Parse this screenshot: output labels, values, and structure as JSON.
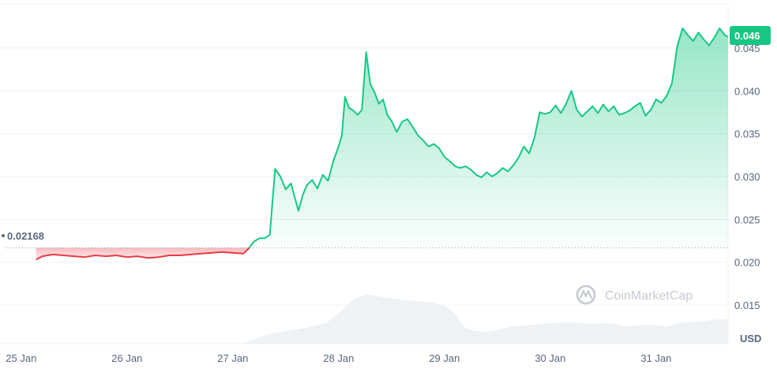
{
  "chart_data": {
    "type": "line",
    "unit": "USD",
    "open_price_label": "0.02168",
    "open_price": 0.02168,
    "current_price_label": "0.046",
    "current_price": 0.046,
    "ylim": [
      0.0105,
      0.0506
    ],
    "yticks": [
      {
        "value": 0.015,
        "label": "0.015"
      },
      {
        "value": 0.02,
        "label": "0.020"
      },
      {
        "value": 0.025,
        "label": "0.025"
      },
      {
        "value": 0.03,
        "label": "0.030"
      },
      {
        "value": 0.035,
        "label": "0.035"
      },
      {
        "value": 0.04,
        "label": "0.040"
      },
      {
        "value": 0.045,
        "label": "0.045"
      }
    ],
    "xticks": [
      {
        "day": 0,
        "label": "25 Jan"
      },
      {
        "day": 1,
        "label": "26 Jan"
      },
      {
        "day": 2,
        "label": "27 Jan"
      },
      {
        "day": 3,
        "label": "28 Jan"
      },
      {
        "day": 4,
        "label": "29 Jan"
      },
      {
        "day": 5,
        "label": "30 Jan"
      },
      {
        "day": 6,
        "label": "31 Jan"
      }
    ],
    "xlim": [
      -0.2,
      6.68
    ],
    "price_series": [
      [
        0.14,
        0.0203
      ],
      [
        0.2,
        0.0207
      ],
      [
        0.3,
        0.0209
      ],
      [
        0.4,
        0.0208
      ],
      [
        0.5,
        0.0207
      ],
      [
        0.6,
        0.0206
      ],
      [
        0.7,
        0.0208
      ],
      [
        0.8,
        0.0207
      ],
      [
        0.9,
        0.0208
      ],
      [
        1.0,
        0.0206
      ],
      [
        1.1,
        0.0207
      ],
      [
        1.2,
        0.0205
      ],
      [
        1.3,
        0.0206
      ],
      [
        1.4,
        0.0208
      ],
      [
        1.5,
        0.0208
      ],
      [
        1.6,
        0.0209
      ],
      [
        1.7,
        0.021
      ],
      [
        1.8,
        0.0211
      ],
      [
        1.9,
        0.0212
      ],
      [
        2.0,
        0.0211
      ],
      [
        2.1,
        0.021
      ],
      [
        2.15,
        0.0216
      ],
      [
        2.2,
        0.0224
      ],
      [
        2.25,
        0.0228
      ],
      [
        2.3,
        0.0228
      ],
      [
        2.35,
        0.0232
      ],
      [
        2.4,
        0.0309
      ],
      [
        2.45,
        0.03
      ],
      [
        2.5,
        0.0285
      ],
      [
        2.55,
        0.0292
      ],
      [
        2.58,
        0.0278
      ],
      [
        2.62,
        0.026
      ],
      [
        2.66,
        0.0278
      ],
      [
        2.7,
        0.029
      ],
      [
        2.75,
        0.0296
      ],
      [
        2.8,
        0.0286
      ],
      [
        2.85,
        0.0302
      ],
      [
        2.9,
        0.0295
      ],
      [
        2.95,
        0.0318
      ],
      [
        3.0,
        0.0335
      ],
      [
        3.03,
        0.0348
      ],
      [
        3.06,
        0.0393
      ],
      [
        3.1,
        0.038
      ],
      [
        3.14,
        0.0377
      ],
      [
        3.18,
        0.0372
      ],
      [
        3.22,
        0.0378
      ],
      [
        3.26,
        0.0445
      ],
      [
        3.3,
        0.0408
      ],
      [
        3.34,
        0.0398
      ],
      [
        3.38,
        0.0385
      ],
      [
        3.42,
        0.039
      ],
      [
        3.46,
        0.0372
      ],
      [
        3.5,
        0.0365
      ],
      [
        3.55,
        0.0352
      ],
      [
        3.6,
        0.0364
      ],
      [
        3.65,
        0.0367
      ],
      [
        3.7,
        0.0358
      ],
      [
        3.75,
        0.0348
      ],
      [
        3.8,
        0.0342
      ],
      [
        3.85,
        0.0335
      ],
      [
        3.9,
        0.0338
      ],
      [
        3.95,
        0.0333
      ],
      [
        4.0,
        0.0323
      ],
      [
        4.05,
        0.0318
      ],
      [
        4.1,
        0.0312
      ],
      [
        4.15,
        0.031
      ],
      [
        4.2,
        0.0312
      ],
      [
        4.25,
        0.0308
      ],
      [
        4.3,
        0.0302
      ],
      [
        4.35,
        0.0299
      ],
      [
        4.4,
        0.0305
      ],
      [
        4.45,
        0.03
      ],
      [
        4.5,
        0.0304
      ],
      [
        4.55,
        0.031
      ],
      [
        4.6,
        0.0306
      ],
      [
        4.65,
        0.0313
      ],
      [
        4.7,
        0.0322
      ],
      [
        4.75,
        0.0335
      ],
      [
        4.8,
        0.0327
      ],
      [
        4.85,
        0.0345
      ],
      [
        4.9,
        0.0375
      ],
      [
        4.95,
        0.0373
      ],
      [
        5.0,
        0.0375
      ],
      [
        5.05,
        0.0383
      ],
      [
        5.1,
        0.0374
      ],
      [
        5.15,
        0.0385
      ],
      [
        5.2,
        0.04
      ],
      [
        5.25,
        0.0378
      ],
      [
        5.3,
        0.037
      ],
      [
        5.35,
        0.0376
      ],
      [
        5.4,
        0.0382
      ],
      [
        5.45,
        0.0374
      ],
      [
        5.5,
        0.0384
      ],
      [
        5.55,
        0.0376
      ],
      [
        5.6,
        0.0382
      ],
      [
        5.65,
        0.0372
      ],
      [
        5.7,
        0.0374
      ],
      [
        5.75,
        0.0377
      ],
      [
        5.8,
        0.0382
      ],
      [
        5.85,
        0.0386
      ],
      [
        5.9,
        0.0371
      ],
      [
        5.95,
        0.0378
      ],
      [
        6.0,
        0.039
      ],
      [
        6.05,
        0.0386
      ],
      [
        6.1,
        0.0394
      ],
      [
        6.15,
        0.0409
      ],
      [
        6.2,
        0.0452
      ],
      [
        6.25,
        0.0473
      ],
      [
        6.3,
        0.0465
      ],
      [
        6.35,
        0.0458
      ],
      [
        6.4,
        0.0468
      ],
      [
        6.45,
        0.046
      ],
      [
        6.5,
        0.0453
      ],
      [
        6.55,
        0.0462
      ],
      [
        6.6,
        0.0473
      ],
      [
        6.65,
        0.0465
      ],
      [
        6.68,
        0.0463
      ]
    ],
    "volume_series": [
      [
        2.1,
        0.005
      ],
      [
        2.2,
        0.09
      ],
      [
        2.35,
        0.2
      ],
      [
        2.5,
        0.26
      ],
      [
        2.65,
        0.31
      ],
      [
        2.75,
        0.35
      ],
      [
        2.85,
        0.4
      ],
      [
        2.9,
        0.45
      ],
      [
        3.0,
        0.62
      ],
      [
        3.05,
        0.72
      ],
      [
        3.1,
        0.83
      ],
      [
        3.15,
        0.91
      ],
      [
        3.2,
        0.96
      ],
      [
        3.25,
        0.99
      ],
      [
        3.3,
        1.0
      ],
      [
        3.4,
        0.96
      ],
      [
        3.5,
        0.93
      ],
      [
        3.6,
        0.9
      ],
      [
        3.7,
        0.88
      ],
      [
        3.8,
        0.86
      ],
      [
        3.9,
        0.84
      ],
      [
        4.0,
        0.78
      ],
      [
        4.05,
        0.7
      ],
      [
        4.1,
        0.62
      ],
      [
        4.15,
        0.45
      ],
      [
        4.2,
        0.32
      ],
      [
        4.3,
        0.26
      ],
      [
        4.4,
        0.24
      ],
      [
        4.5,
        0.28
      ],
      [
        4.6,
        0.33
      ],
      [
        4.7,
        0.36
      ],
      [
        4.8,
        0.38
      ],
      [
        4.9,
        0.4
      ],
      [
        5.0,
        0.42
      ],
      [
        5.1,
        0.43
      ],
      [
        5.2,
        0.44
      ],
      [
        5.3,
        0.42
      ],
      [
        5.4,
        0.41
      ],
      [
        5.5,
        0.42
      ],
      [
        5.6,
        0.41
      ],
      [
        5.7,
        0.36
      ],
      [
        5.8,
        0.37
      ],
      [
        5.9,
        0.38
      ],
      [
        6.0,
        0.38
      ],
      [
        6.1,
        0.35
      ],
      [
        6.2,
        0.42
      ],
      [
        6.3,
        0.44
      ],
      [
        6.4,
        0.45
      ],
      [
        6.5,
        0.48
      ],
      [
        6.6,
        0.5
      ],
      [
        6.68,
        0.5
      ]
    ],
    "colors": {
      "up_line": "#16c784",
      "down_line": "#ea3943",
      "grid": "#eff2f5",
      "current_badge": "#16c784",
      "volume": "#eff2f5",
      "tick_text": "#58667e"
    },
    "grid": true
  },
  "watermark": {
    "text": "CoinMarketCap",
    "icon": "coinmarketcap-logo-icon"
  }
}
